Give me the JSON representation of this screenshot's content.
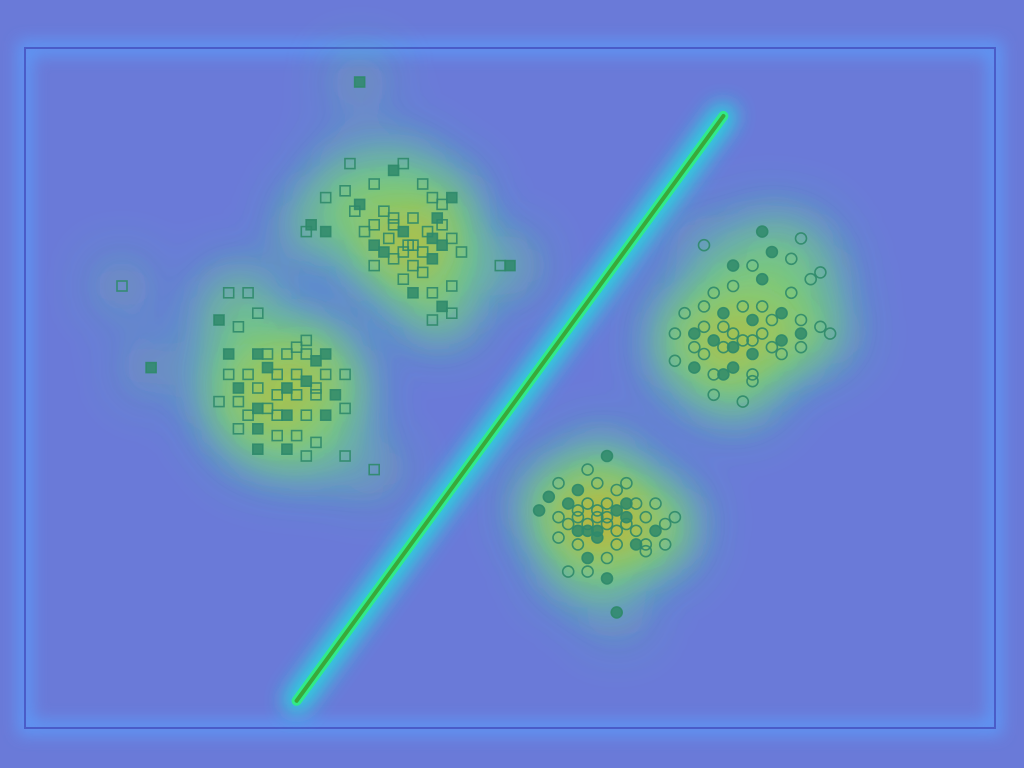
{
  "colors": {
    "background": "#6a7ad8",
    "frame": "#4a5cc8",
    "line": "#3aa83a",
    "marker": "#2f8a6a",
    "heat": [
      "#5aa0ff",
      "#20e0e0",
      "#30f080",
      "#e8f040",
      "#ff9a20",
      "#e84010",
      "#a00000"
    ]
  },
  "chart_data": {
    "type": "scatter",
    "title": "",
    "xlabel": "",
    "ylabel": "",
    "grid": false,
    "legend": "none",
    "xlim": [
      0,
      100
    ],
    "ylim": [
      0,
      100
    ],
    "overlay": "heatmap-density",
    "decision_line": {
      "x": [
        28,
        72
      ],
      "y": [
        4,
        90
      ]
    },
    "series": [
      {
        "marker": "square",
        "points": [
          [
            34.5,
            95
          ],
          [
            33.5,
            83
          ],
          [
            31,
            78
          ],
          [
            29.5,
            74
          ],
          [
            29,
            73
          ],
          [
            31,
            73
          ],
          [
            33,
            79
          ],
          [
            34,
            76
          ],
          [
            36,
            80
          ],
          [
            37,
            76
          ],
          [
            38,
            82
          ],
          [
            39,
            83
          ],
          [
            41,
            80
          ],
          [
            42,
            78
          ],
          [
            43,
            77
          ],
          [
            44,
            78
          ],
          [
            43,
            74
          ],
          [
            42,
            72
          ],
          [
            41,
            70
          ],
          [
            40,
            71
          ],
          [
            39,
            73
          ],
          [
            38,
            75
          ],
          [
            36,
            74
          ],
          [
            35,
            73
          ],
          [
            36,
            71
          ],
          [
            37,
            70
          ],
          [
            38,
            69
          ],
          [
            39,
            70
          ],
          [
            40,
            68
          ],
          [
            41,
            67
          ],
          [
            42,
            69
          ],
          [
            43,
            71
          ],
          [
            44,
            72
          ],
          [
            45,
            70
          ],
          [
            39,
            66
          ],
          [
            40,
            64
          ],
          [
            42,
            64
          ],
          [
            44,
            65
          ],
          [
            43,
            62
          ],
          [
            44,
            61
          ],
          [
            34.5,
            77
          ],
          [
            36,
            68
          ],
          [
            38,
            74
          ],
          [
            40,
            75
          ],
          [
            41.5,
            73
          ],
          [
            42.5,
            75
          ],
          [
            37.5,
            72
          ],
          [
            39.5,
            71
          ],
          [
            42,
            60
          ],
          [
            49,
            68
          ],
          [
            50,
            68
          ],
          [
            10,
            65
          ],
          [
            13,
            53
          ],
          [
            21,
            64
          ],
          [
            23,
            64
          ],
          [
            20,
            60
          ],
          [
            22,
            59
          ],
          [
            24,
            61
          ],
          [
            29,
            57
          ],
          [
            21,
            55
          ],
          [
            24,
            55
          ],
          [
            25,
            55
          ],
          [
            27,
            55
          ],
          [
            28,
            56
          ],
          [
            29,
            55
          ],
          [
            30,
            54
          ],
          [
            31,
            55
          ],
          [
            33,
            52
          ],
          [
            21,
            52
          ],
          [
            23,
            52
          ],
          [
            25,
            53
          ],
          [
            26,
            52
          ],
          [
            28,
            52
          ],
          [
            29,
            51
          ],
          [
            31,
            52
          ],
          [
            22,
            50
          ],
          [
            24,
            50
          ],
          [
            26,
            49
          ],
          [
            28,
            49
          ],
          [
            30,
            49
          ],
          [
            32,
            49
          ],
          [
            20,
            48
          ],
          [
            22,
            48
          ],
          [
            23,
            46
          ],
          [
            25,
            47
          ],
          [
            27,
            46
          ],
          [
            29,
            46
          ],
          [
            31,
            46
          ],
          [
            33,
            47
          ],
          [
            22,
            44
          ],
          [
            24,
            44
          ],
          [
            26,
            43
          ],
          [
            28,
            43
          ],
          [
            30,
            42
          ],
          [
            24,
            41
          ],
          [
            27,
            41
          ],
          [
            29,
            40
          ],
          [
            33,
            40
          ],
          [
            36,
            38
          ],
          [
            30,
            50
          ],
          [
            27,
            50
          ],
          [
            24,
            47
          ],
          [
            26,
            46
          ]
        ]
      },
      {
        "marker": "circle",
        "points": [
          [
            76,
            73
          ],
          [
            80,
            72
          ],
          [
            70,
            71
          ],
          [
            73,
            68
          ],
          [
            75,
            68
          ],
          [
            77,
            70
          ],
          [
            79,
            69
          ],
          [
            81,
            66
          ],
          [
            71,
            64
          ],
          [
            73,
            65
          ],
          [
            76,
            66
          ],
          [
            79,
            64
          ],
          [
            82,
            67
          ],
          [
            68,
            61
          ],
          [
            70,
            62
          ],
          [
            72,
            61
          ],
          [
            74,
            62
          ],
          [
            75,
            60
          ],
          [
            76,
            62
          ],
          [
            77,
            60
          ],
          [
            78,
            61
          ],
          [
            80,
            60
          ],
          [
            82,
            59
          ],
          [
            67,
            58
          ],
          [
            69,
            58
          ],
          [
            71,
            57
          ],
          [
            72,
            59
          ],
          [
            73,
            58
          ],
          [
            74,
            57
          ],
          [
            76,
            58
          ],
          [
            78,
            57
          ],
          [
            80,
            58
          ],
          [
            69,
            56
          ],
          [
            70,
            55
          ],
          [
            72,
            56
          ],
          [
            75,
            55
          ],
          [
            77,
            56
          ],
          [
            67,
            54
          ],
          [
            69,
            53
          ],
          [
            71,
            52
          ],
          [
            73,
            53
          ],
          [
            75,
            52
          ],
          [
            71,
            49
          ],
          [
            74,
            48
          ],
          [
            75,
            51
          ],
          [
            72,
            52
          ],
          [
            83,
            58
          ],
          [
            80,
            56
          ],
          [
            78,
            55
          ],
          [
            70,
            59
          ],
          [
            73,
            56
          ],
          [
            75,
            57
          ],
          [
            60,
            40
          ],
          [
            58,
            38
          ],
          [
            55,
            36
          ],
          [
            57,
            35
          ],
          [
            59,
            36
          ],
          [
            61,
            35
          ],
          [
            62,
            36
          ],
          [
            54,
            34
          ],
          [
            56,
            33
          ],
          [
            57,
            32
          ],
          [
            58,
            33
          ],
          [
            59,
            32
          ],
          [
            60,
            33
          ],
          [
            61,
            32
          ],
          [
            62,
            33
          ],
          [
            63,
            33
          ],
          [
            64,
            31
          ],
          [
            65,
            33
          ],
          [
            53,
            32
          ],
          [
            55,
            31
          ],
          [
            56,
            30
          ],
          [
            57,
            29
          ],
          [
            58,
            30
          ],
          [
            59,
            29
          ],
          [
            60,
            30
          ],
          [
            61,
            29
          ],
          [
            62,
            30
          ],
          [
            63,
            29
          ],
          [
            65,
            29
          ],
          [
            66,
            30
          ],
          [
            67,
            31
          ],
          [
            55,
            28
          ],
          [
            57,
            27
          ],
          [
            59,
            28
          ],
          [
            61,
            27
          ],
          [
            63,
            27
          ],
          [
            64,
            26
          ],
          [
            66,
            27
          ],
          [
            58,
            25
          ],
          [
            60,
            25
          ],
          [
            56,
            23
          ],
          [
            58,
            23
          ],
          [
            60,
            22
          ],
          [
            61,
            17
          ],
          [
            64,
            27
          ],
          [
            59,
            31
          ],
          [
            57,
            31
          ],
          [
            60,
            31
          ],
          [
            62,
            31
          ],
          [
            58,
            29
          ]
        ]
      }
    ]
  }
}
